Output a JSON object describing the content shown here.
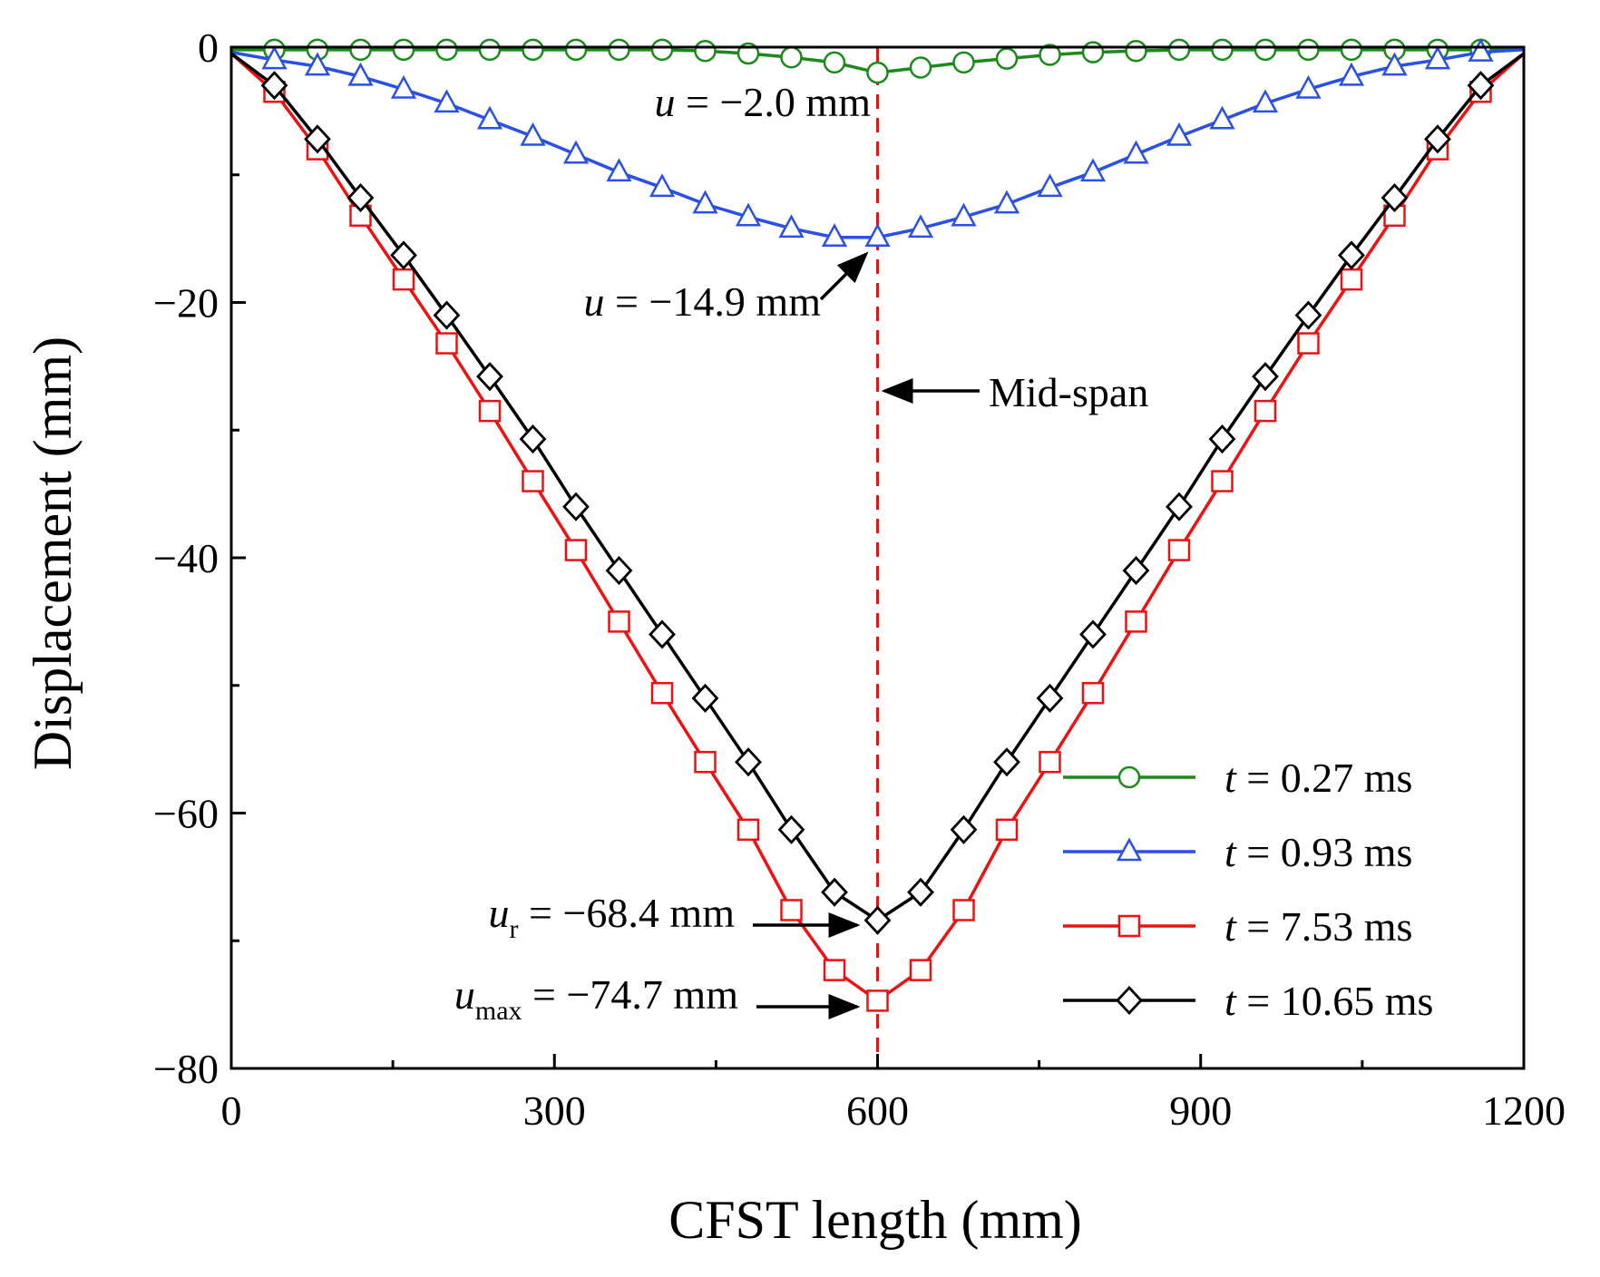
{
  "chart_data": {
    "type": "line",
    "title": "",
    "xlabel": "CFST length (mm)",
    "ylabel": "Displacement (mm)",
    "xlim": [
      0,
      1200
    ],
    "ylim": [
      -80,
      0
    ],
    "xticks": [
      0,
      300,
      600,
      900,
      1200
    ],
    "yticks": [
      0,
      -20,
      -40,
      -60,
      -80
    ],
    "xtick_labels": [
      "0",
      "300",
      "600",
      "900",
      "1200"
    ],
    "ytick_labels": [
      "0",
      "−20",
      "−40",
      "−60",
      "−80"
    ],
    "x": [
      0,
      40,
      80,
      120,
      160,
      200,
      240,
      280,
      320,
      360,
      400,
      440,
      480,
      520,
      560,
      600,
      640,
      680,
      720,
      760,
      800,
      840,
      880,
      920,
      960,
      1000,
      1040,
      1080,
      1120,
      1160,
      1200
    ],
    "series": [
      {
        "name": "t = 0.27 ms",
        "t_value": "0.27 ms",
        "marker": "circle",
        "color": "#1a8a1a",
        "values": [
          -0.2,
          -0.2,
          -0.2,
          -0.2,
          -0.2,
          -0.2,
          -0.2,
          -0.2,
          -0.2,
          -0.2,
          -0.2,
          -0.3,
          -0.5,
          -0.8,
          -1.2,
          -2.0,
          -1.6,
          -1.2,
          -0.9,
          -0.6,
          -0.4,
          -0.3,
          -0.2,
          -0.2,
          -0.2,
          -0.2,
          -0.2,
          -0.2,
          -0.2,
          -0.2,
          -0.2
        ]
      },
      {
        "name": "t = 0.93 ms",
        "t_value": "0.93 ms",
        "marker": "triangle",
        "color": "#2a50e8",
        "values": [
          -0.4,
          -1.0,
          -1.5,
          -2.3,
          -3.3,
          -4.4,
          -5.7,
          -7.0,
          -8.4,
          -9.8,
          -11.0,
          -12.3,
          -13.3,
          -14.2,
          -14.9,
          -14.9,
          -14.2,
          -13.3,
          -12.3,
          -11.0,
          -9.8,
          -8.4,
          -7.0,
          -5.7,
          -4.4,
          -3.3,
          -2.3,
          -1.5,
          -1.0,
          -0.4,
          -0.2
        ]
      },
      {
        "name": "t = 7.53 ms",
        "t_value": "7.53 ms",
        "marker": "square",
        "color": "#ee1111",
        "values": [
          -0.5,
          -3.5,
          -8.0,
          -13.2,
          -18.2,
          -23.2,
          -28.5,
          -34.0,
          -39.4,
          -45.0,
          -50.6,
          -56.0,
          -61.3,
          -67.6,
          -72.3,
          -74.7,
          -72.3,
          -67.6,
          -61.3,
          -56.0,
          -50.6,
          -45.0,
          -39.4,
          -34.0,
          -28.5,
          -23.2,
          -18.2,
          -13.2,
          -8.0,
          -3.5,
          -0.5
        ]
      },
      {
        "name": "t = 10.65 ms",
        "t_value": "10.65 ms",
        "marker": "diamond",
        "color": "#000000",
        "values": [
          -0.5,
          -3.0,
          -7.2,
          -11.8,
          -16.3,
          -21.0,
          -25.8,
          -30.7,
          -36.0,
          -41.0,
          -46.0,
          -51.0,
          -56.0,
          -61.3,
          -66.2,
          -68.4,
          -66.2,
          -61.3,
          -56.0,
          -51.0,
          -46.0,
          -41.0,
          -36.0,
          -30.7,
          -25.8,
          -21.0,
          -16.3,
          -11.8,
          -7.2,
          -3.0,
          -0.5
        ]
      }
    ],
    "annotations": [
      {
        "id": "anno-u-2",
        "var": "u",
        "sub": "",
        "rest": " = −2.0 mm"
      },
      {
        "id": "anno-u-149",
        "var": "u",
        "sub": "",
        "rest": " = −14.9 mm"
      },
      {
        "id": "anno-midspan",
        "text": "Mid-span"
      },
      {
        "id": "anno-ur",
        "var": "u",
        "sub": "r",
        "rest": " = −68.4 mm"
      },
      {
        "id": "anno-umax",
        "var": "u",
        "sub": "max",
        "rest": " = −74.7 mm"
      }
    ],
    "midspan_x": 600,
    "midspan_color": "#ee1111",
    "legend": {
      "position": "bottom-right",
      "var": "t"
    }
  }
}
